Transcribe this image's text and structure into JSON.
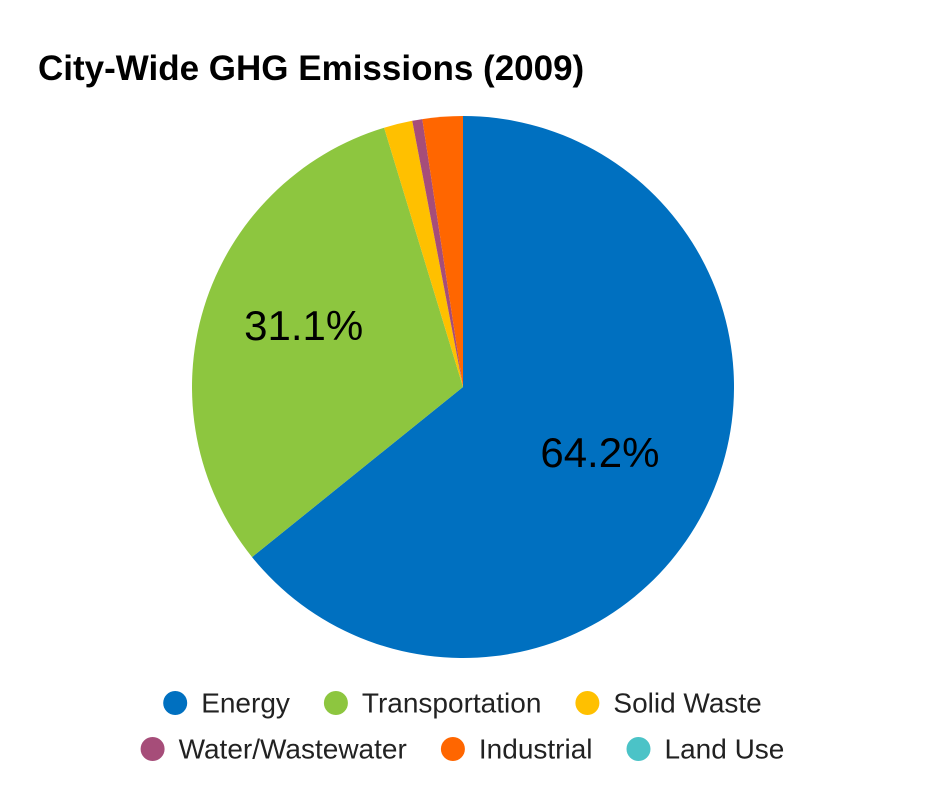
{
  "chart_data": {
    "type": "pie",
    "title": "City-Wide GHG Emissions (2009)",
    "start_angle_deg": 0,
    "direction": "clockwise",
    "legend_position": "bottom",
    "slices": [
      {
        "label": "Energy",
        "value": 64.2,
        "color": "#0070C0",
        "display_label": "64.2%"
      },
      {
        "label": "Transportation",
        "value": 31.1,
        "color": "#8DC63F",
        "display_label": "31.1%"
      },
      {
        "label": "Solid Waste",
        "value": 1.7,
        "color": "#FFC000",
        "display_label": ""
      },
      {
        "label": "Water/Wastewater",
        "value": 0.6,
        "color": "#A64D79",
        "display_label": ""
      },
      {
        "label": "Industrial",
        "value": 2.4,
        "color": "#FF6600",
        "display_label": ""
      },
      {
        "label": "Land Use",
        "value": 0.0,
        "color": "#4BC3C7",
        "display_label": ""
      }
    ]
  }
}
